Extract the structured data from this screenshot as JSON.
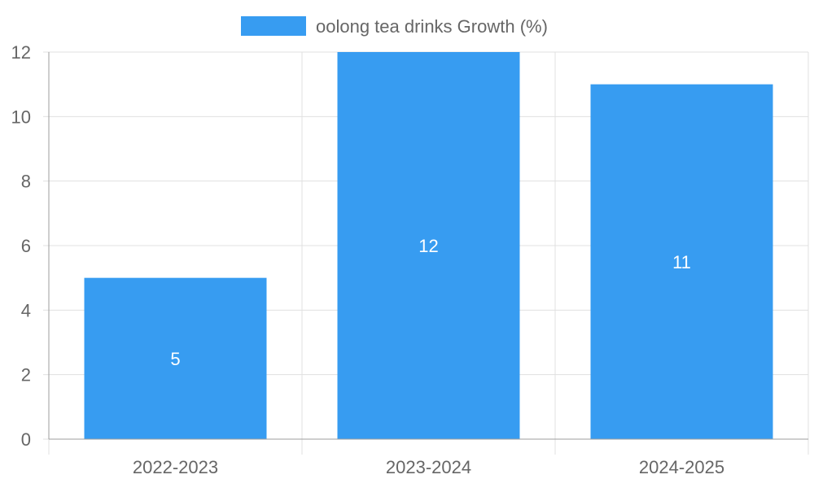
{
  "chart_data": {
    "type": "bar",
    "categories": [
      "2022-2023",
      "2023-2024",
      "2024-2025"
    ],
    "series": [
      {
        "name": "oolong tea drinks Growth (%)",
        "values": [
          5,
          12,
          11
        ]
      }
    ],
    "ylim": [
      0,
      12
    ],
    "yticks": [
      0,
      2,
      4,
      6,
      8,
      10,
      12
    ],
    "grid": true,
    "legend_position": "top-center",
    "data_labels": [
      "5",
      "12",
      "11"
    ],
    "colors": {
      "bar": "#379cf1",
      "grid": "#e0e0e0",
      "axis": "#9e9e9e",
      "text": "#666666",
      "data_label": "#ffffff"
    }
  }
}
